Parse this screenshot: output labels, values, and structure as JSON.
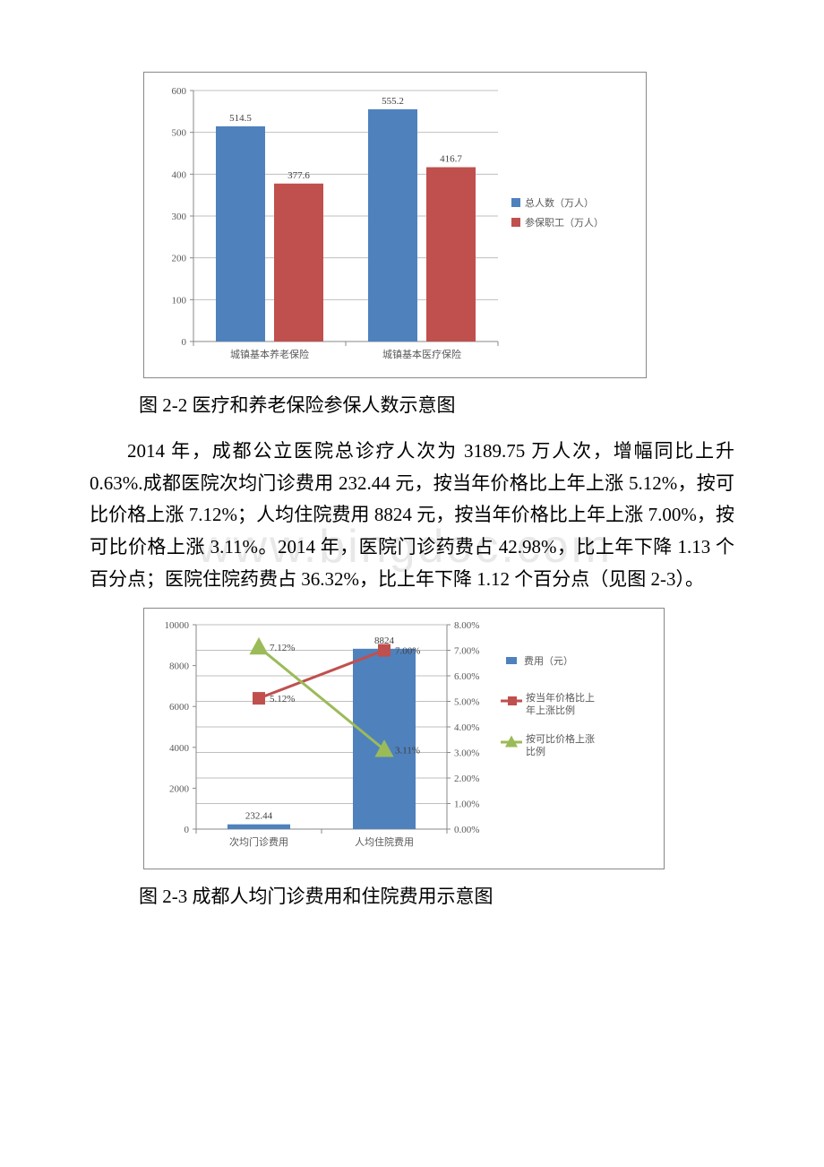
{
  "watermark": "www.bingdoc.com",
  "chart1": {
    "type": "bar-grouped",
    "plot_bg": "#ffffff",
    "grid_color": "#bfbfbf",
    "border_color": "#888888",
    "tick_color": "#888888",
    "tick_font_size": 11,
    "label_font_size": 11,
    "categories": [
      "城镇基本养老保险",
      "城镇基本医疗保险"
    ],
    "ylim": [
      0,
      600
    ],
    "ytick_step": 100,
    "series": [
      {
        "name": "总人数（万人）",
        "color": "#4f81bd",
        "values": [
          514.5,
          555.2
        ]
      },
      {
        "name": "参保职工（万人）",
        "color": "#c0504d",
        "values": [
          377.6,
          416.7
        ]
      }
    ],
    "legend_marker_size": 10
  },
  "caption1": "图 2-2 医疗和养老保险参保人数示意图",
  "paragraph": "2014 年，成都公立医院总诊疗人次为 3189.75 万人次，增幅同比上升 0.63%.成都医院次均门诊费用 232.44 元，按当年价格比上年上涨 5.12%，按可比价格上涨 7.12%；人均住院费用 8824 元，按当年价格比上年上涨 7.00%，按可比价格上涨 3.11%。2014 年，医院门诊药费占 42.98%，比上年下降 1.13 个百分点；医院住院药费占 36.32%，比上年下降 1.12 个百分点（见图 2-3）。",
  "chart2": {
    "type": "combo-bar-line",
    "plot_bg": "#ffffff",
    "grid_color": "#bfbfbf",
    "border_color": "#888888",
    "tick_color": "#888888",
    "tick_font_size": 11,
    "label_font_size": 11,
    "categories": [
      "次均门诊费用",
      "人均住院费用"
    ],
    "y1_lim": [
      0,
      10000
    ],
    "y1_tick_step": 2000,
    "y2_lim": [
      0,
      8
    ],
    "y2_tick_step": 1,
    "y2_format": "percent",
    "bar_series": {
      "name": "费用（元）",
      "color": "#4f81bd",
      "values": [
        232.44,
        8824
      ]
    },
    "line_series": [
      {
        "name": "按当年价格比上年上涨比例",
        "color": "#c0504d",
        "marker": "square",
        "marker_size": 14,
        "line_width": 3,
        "values_pct": [
          5.12,
          7.0
        ]
      },
      {
        "name": "按可比价格上涨比例",
        "color": "#9bbb59",
        "marker": "triangle",
        "marker_size": 18,
        "line_width": 3,
        "values_pct": [
          7.12,
          3.11
        ]
      }
    ]
  },
  "caption2": "图 2-3 成都人均门诊费用和住院费用示意图"
}
